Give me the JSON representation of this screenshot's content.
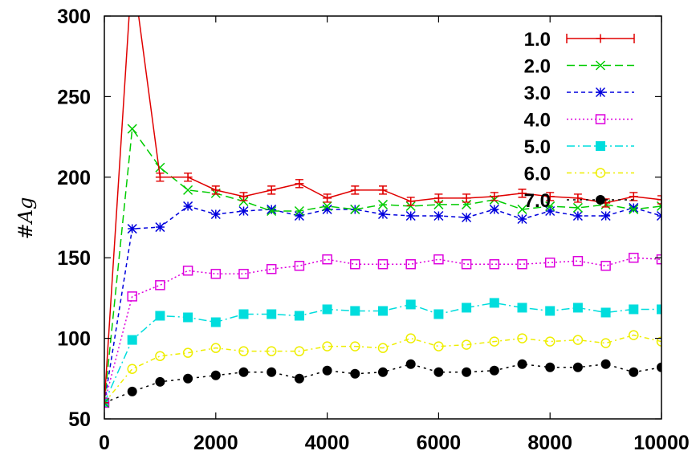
{
  "chart_data": {
    "type": "line",
    "ylabel": "#Ag",
    "xlabel": "",
    "xlim": [
      0,
      10000
    ],
    "ylim": [
      50,
      300
    ],
    "xticks": [
      0,
      2000,
      4000,
      6000,
      8000,
      10000
    ],
    "yticks": [
      50,
      100,
      150,
      200,
      250,
      300
    ],
    "grid": false,
    "legend_position": "top-right",
    "x": [
      0,
      500,
      1000,
      1500,
      2000,
      2500,
      3000,
      3500,
      4000,
      4500,
      5000,
      5500,
      6000,
      6500,
      7000,
      7500,
      8000,
      8500,
      9000,
      9500,
      10000
    ],
    "series": [
      {
        "name": "1.0",
        "color": "#e00000",
        "marker": "plus",
        "dash": "none",
        "errorbars": true,
        "values": [
          60,
          330,
          200,
          200,
          192,
          188,
          192,
          196,
          187,
          192,
          192,
          185,
          187,
          187,
          188,
          190,
          188,
          187,
          184,
          188,
          186
        ]
      },
      {
        "name": "2.0",
        "color": "#00cc00",
        "marker": "x",
        "dash": "10,5",
        "values": [
          60,
          230,
          206,
          192,
          190,
          185,
          179,
          179,
          182,
          180,
          183,
          182,
          183,
          183,
          186,
          180,
          182,
          181,
          183,
          180,
          182
        ]
      },
      {
        "name": "3.0",
        "color": "#0000dd",
        "marker": "star",
        "dash": "5,4",
        "values": [
          60,
          168,
          169,
          182,
          177,
          179,
          180,
          176,
          180,
          180,
          177,
          176,
          176,
          175,
          180,
          174,
          179,
          176,
          176,
          181,
          176
        ]
      },
      {
        "name": "4.0",
        "color": "#dd00dd",
        "marker": "square-open",
        "dash": "2,3",
        "values": [
          60,
          126,
          133,
          142,
          140,
          140,
          143,
          145,
          149,
          146,
          146,
          146,
          149,
          146,
          146,
          146,
          147,
          148,
          145,
          150,
          149
        ]
      },
      {
        "name": "5.0",
        "color": "#00dddd",
        "marker": "square-filled",
        "dash": "10,4,2,4",
        "values": [
          60,
          99,
          114,
          113,
          110,
          115,
          115,
          114,
          118,
          117,
          117,
          121,
          115,
          119,
          122,
          119,
          117,
          119,
          116,
          118,
          118
        ]
      },
      {
        "name": "6.0",
        "color": "#eeee00",
        "marker": "circle-open",
        "dash": "6,4,2,4",
        "values": [
          60,
          81,
          89,
          91,
          94,
          92,
          92,
          92,
          95,
          95,
          94,
          100,
          95,
          96,
          98,
          100,
          98,
          99,
          97,
          102,
          98
        ]
      },
      {
        "name": "7.0",
        "color": "#000000",
        "marker": "circle-filled",
        "dash": "3,5",
        "values": [
          60,
          67,
          73,
          75,
          77,
          79,
          79,
          75,
          80,
          78,
          79,
          84,
          79,
          79,
          80,
          84,
          82,
          82,
          84,
          79,
          82
        ]
      }
    ]
  }
}
